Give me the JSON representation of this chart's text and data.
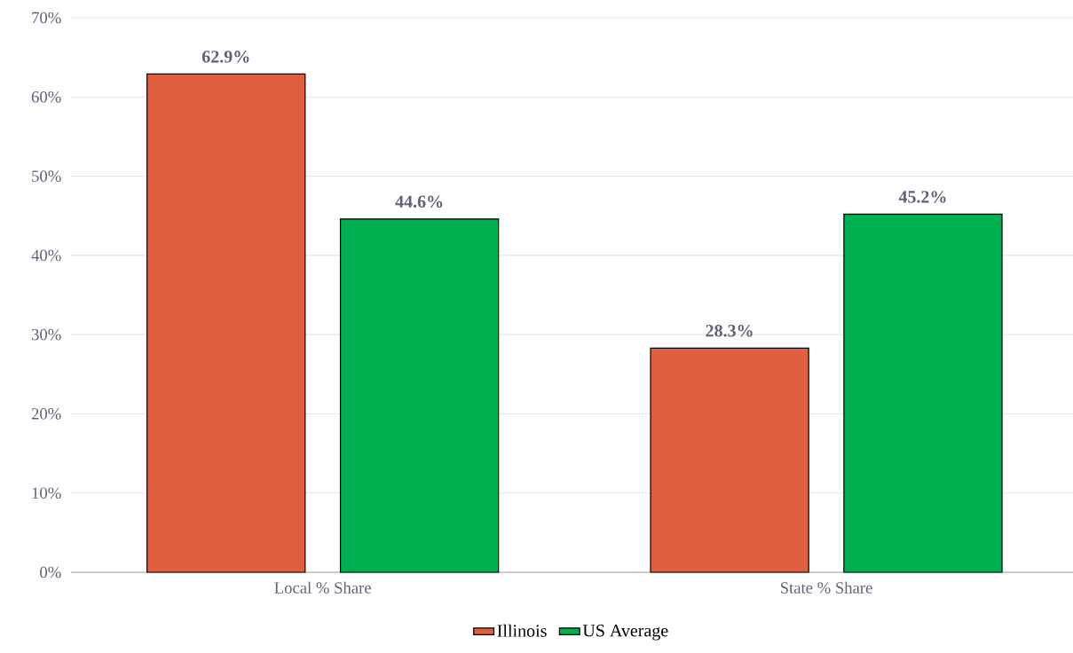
{
  "chart_data": {
    "type": "bar",
    "categories": [
      "Local % Share",
      "State % Share"
    ],
    "series": [
      {
        "name": "Illinois",
        "color": "#df5f3e",
        "values": [
          62.9,
          28.3
        ],
        "value_labels": [
          "62.9%",
          "28.3%"
        ]
      },
      {
        "name": "US Average",
        "color": "#00b050",
        "values": [
          44.6,
          45.2
        ],
        "value_labels": [
          "44.6%",
          "45.2%"
        ]
      }
    ],
    "ylim": [
      0,
      70
    ],
    "yticks": [
      {
        "value": 0,
        "label": "0%"
      },
      {
        "value": 10,
        "label": "10%"
      },
      {
        "value": 20,
        "label": "20%"
      },
      {
        "value": 30,
        "label": "30%"
      },
      {
        "value": 40,
        "label": "40%"
      },
      {
        "value": 50,
        "label": "50%"
      },
      {
        "value": 60,
        "label": "60%"
      },
      {
        "value": 70,
        "label": "70%"
      }
    ],
    "grid": "y",
    "legend": "bottom"
  }
}
